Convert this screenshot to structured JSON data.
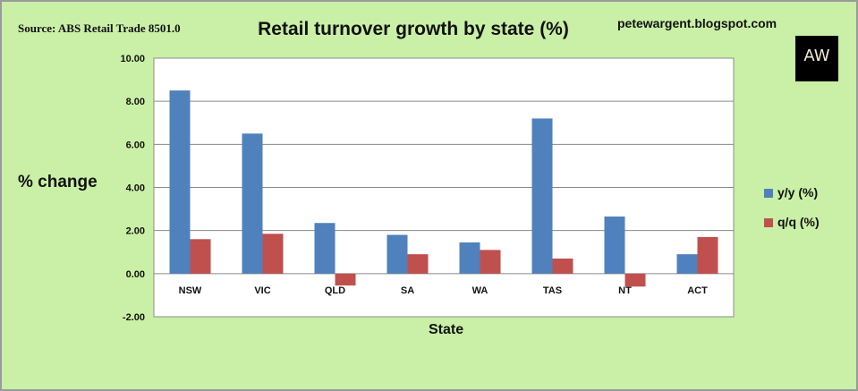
{
  "header": {
    "source": "Source: ABS Retail Trade 8501.0",
    "title": "Retail turnover growth by state (%)",
    "blog": "petewargent.blogspot.com",
    "logo_text": "AW"
  },
  "colors": {
    "background": "#c9f0a6",
    "plot_area": "#ffffff",
    "series_yy": "#4f81bd",
    "series_qq": "#c0504d"
  },
  "chart_data": {
    "type": "bar",
    "title": "Retail turnover growth by state (%)",
    "xlabel": "State",
    "ylabel": "% change",
    "ylim": [
      -2,
      10
    ],
    "yticks": [
      "-2.00",
      "0.00",
      "2.00",
      "4.00",
      "6.00",
      "8.00",
      "10.00"
    ],
    "categories": [
      "NSW",
      "VIC",
      "QLD",
      "SA",
      "WA",
      "TAS",
      "NT",
      "ACT"
    ],
    "series": [
      {
        "name": "y/y (%)",
        "values": [
          8.5,
          6.5,
          2.35,
          1.8,
          1.45,
          7.2,
          2.65,
          0.9
        ]
      },
      {
        "name": "q/q (%)",
        "values": [
          1.6,
          1.85,
          -0.55,
          0.9,
          1.1,
          0.7,
          -0.6,
          1.7
        ]
      }
    ],
    "grid": true,
    "legend": "right"
  }
}
